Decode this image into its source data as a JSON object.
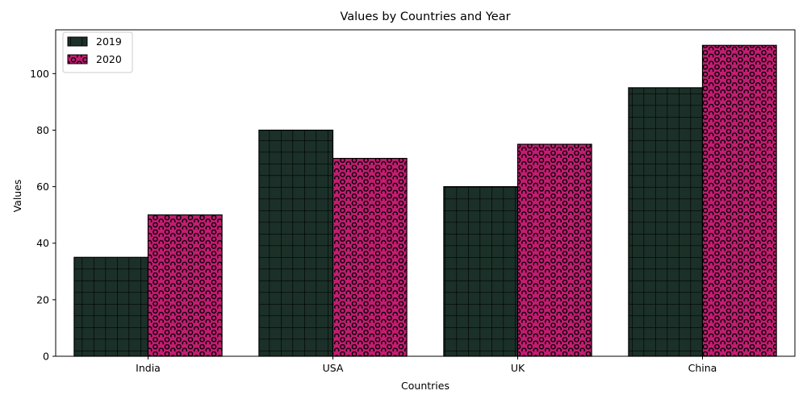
{
  "chart_data": {
    "type": "bar",
    "title": "Values by Countries and Year",
    "xlabel": "Countries",
    "ylabel": "Values",
    "categories": [
      "India",
      "USA",
      "UK",
      "China"
    ],
    "series": [
      {
        "name": "2019",
        "values": [
          35,
          80,
          60,
          95
        ],
        "color": "#1b3028",
        "pattern": "grid"
      },
      {
        "name": "2020",
        "values": [
          50,
          70,
          75,
          110
        ],
        "color": "#c21d72",
        "pattern": "circles"
      }
    ],
    "ylim": [
      0,
      115.5
    ],
    "yticks": [
      0,
      20,
      40,
      60,
      80,
      100
    ],
    "grid": false,
    "legend_position": "top-left"
  }
}
